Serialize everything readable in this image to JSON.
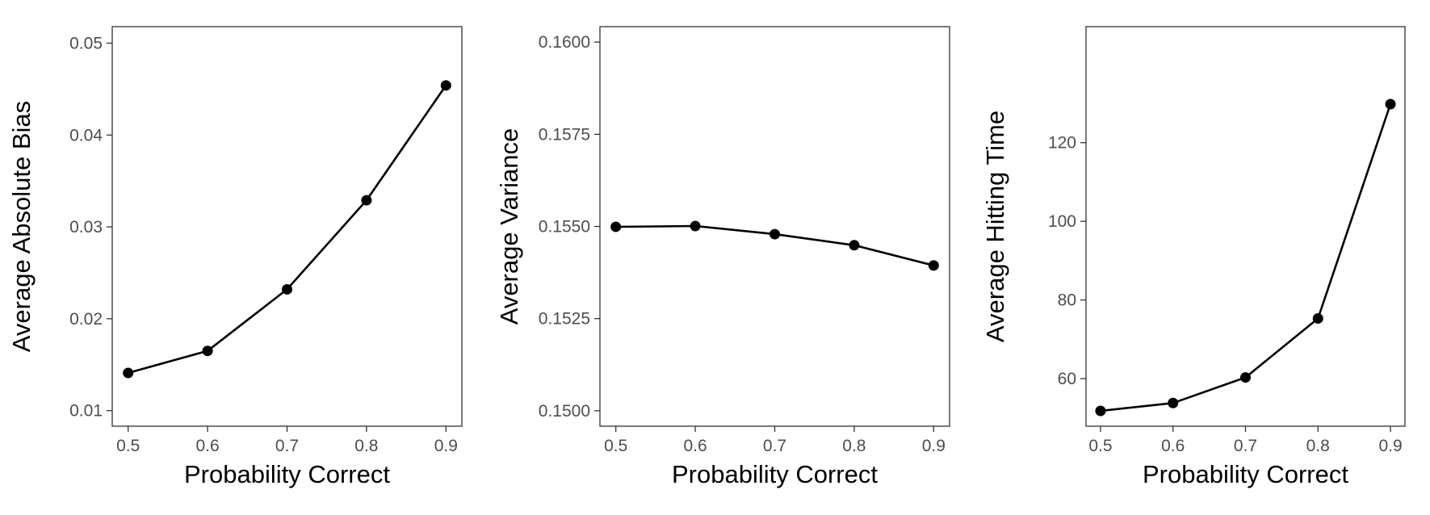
{
  "chart_data": [
    {
      "type": "line",
      "title": "",
      "xlabel": "Probability Correct",
      "ylabel": "Average Absolute Bias",
      "x": [
        0.5,
        0.6,
        0.7,
        0.8,
        0.9
      ],
      "series": [
        {
          "values": [
            0.0141,
            0.0165,
            0.0232,
            0.0329,
            0.0454
          ]
        }
      ],
      "xlim": [
        0.48,
        0.92
      ],
      "ylim": [
        0.0083,
        0.0518
      ],
      "xticks": [
        "0.5",
        "0.6",
        "0.7",
        "0.8",
        "0.9"
      ],
      "xtick_values": [
        0.5,
        0.6,
        0.7,
        0.8,
        0.9
      ],
      "yticks": [
        "0.01",
        "0.02",
        "0.03",
        "0.04",
        "0.05"
      ],
      "ytick_values": [
        0.01,
        0.02,
        0.03,
        0.04,
        0.05
      ],
      "grid": false,
      "color": "#000000"
    },
    {
      "type": "line",
      "title": "",
      "xlabel": "Probability Correct",
      "ylabel": "Average Variance",
      "x": [
        0.5,
        0.6,
        0.7,
        0.8,
        0.9
      ],
      "series": [
        {
          "values": [
            0.15499,
            0.15501,
            0.15479,
            0.15449,
            0.15394
          ]
        }
      ],
      "xlim": [
        0.48,
        0.92
      ],
      "ylim": [
        0.14958,
        0.16042
      ],
      "xticks": [
        "0.5",
        "0.6",
        "0.7",
        "0.8",
        "0.9"
      ],
      "xtick_values": [
        0.5,
        0.6,
        0.7,
        0.8,
        0.9
      ],
      "yticks": [
        "0.1500",
        "0.1525",
        "0.1550",
        "0.1575",
        "0.1600"
      ],
      "ytick_values": [
        0.15,
        0.1525,
        0.155,
        0.1575,
        0.16
      ],
      "grid": false,
      "color": "#000000"
    },
    {
      "type": "line",
      "title": "",
      "xlabel": "Probability Correct",
      "ylabel": "Average Hitting Time",
      "x": [
        0.5,
        0.6,
        0.7,
        0.8,
        0.9
      ],
      "series": [
        {
          "values": [
            51.8,
            53.8,
            60.3,
            75.3,
            129.8
          ]
        }
      ],
      "xlim": [
        0.48,
        0.92
      ],
      "ylim": [
        47.9,
        149.5
      ],
      "xticks": [
        "0.5",
        "0.6",
        "0.7",
        "0.8",
        "0.9"
      ],
      "xtick_values": [
        0.5,
        0.6,
        0.7,
        0.8,
        0.9
      ],
      "yticks": [
        "60",
        "80",
        "100",
        "120"
      ],
      "ytick_values": [
        60,
        80,
        100,
        120
      ],
      "grid": false,
      "color": "#000000"
    }
  ]
}
